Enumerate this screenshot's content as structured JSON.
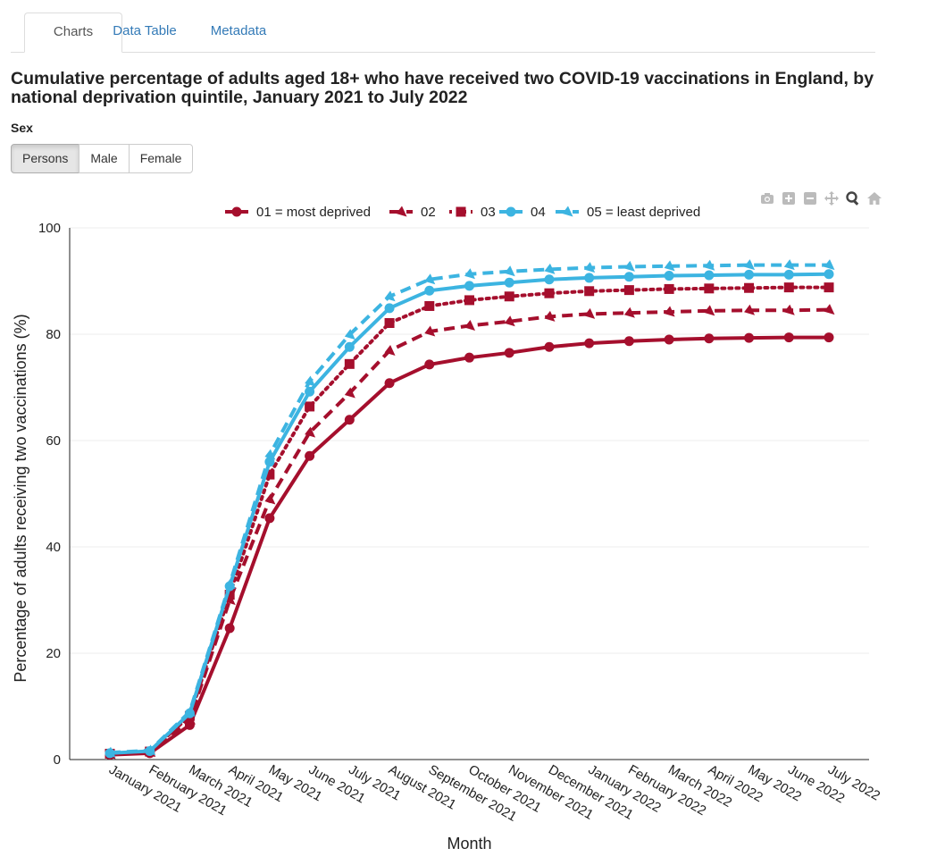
{
  "tabs": [
    {
      "label": "Charts",
      "active": true
    },
    {
      "label": "Data Table",
      "active": false
    },
    {
      "label": "Metadata",
      "active": false
    }
  ],
  "title": "Cumulative percentage of adults aged 18+ who have received two COVID-19 vaccinations in England, by national deprivation quintile, January 2021 to July 2022",
  "filter": {
    "label": "Sex",
    "options": [
      {
        "label": "Persons",
        "active": true
      },
      {
        "label": "Male",
        "active": false
      },
      {
        "label": "Female",
        "active": false
      }
    ]
  },
  "modebar": {
    "icons": [
      "camera-icon",
      "zoom-in-icon",
      "zoom-out-icon",
      "pan-icon",
      "zoom-icon",
      "home-icon"
    ],
    "color": "#bbbbbb"
  },
  "chart_data": {
    "type": "line",
    "xlabel": "Month",
    "ylabel": "Percentage of adults receiving two vaccinations (%)",
    "ylim": [
      0,
      100
    ],
    "yticks": [
      0,
      20,
      40,
      60,
      80,
      100
    ],
    "grid": true,
    "legend_position": "top",
    "categories": [
      "January 2021",
      "February 2021",
      "March 2021",
      "April 2021",
      "May 2021",
      "June 2021",
      "July 2021",
      "August 2021",
      "September 2021",
      "October 2021",
      "November 2021",
      "December 2021",
      "January 2022",
      "February 2022",
      "March 2022",
      "April 2022",
      "May 2022",
      "June 2022",
      "July 2022"
    ],
    "series": [
      {
        "name": "01 = most deprived",
        "color": "#a50f2d",
        "dash": "solid",
        "marker": "circle",
        "values": [
          0.9,
          1.2,
          6.5,
          24.7,
          45.4,
          57.1,
          63.9,
          70.8,
          74.3,
          75.6,
          76.5,
          77.6,
          78.3,
          78.7,
          79.0,
          79.2,
          79.3,
          79.4,
          79.4
        ]
      },
      {
        "name": "02",
        "color": "#a50f2d",
        "dash": "dashed",
        "marker": "triangle",
        "values": [
          1.0,
          1.4,
          7.5,
          30.0,
          48.9,
          61.5,
          68.9,
          76.9,
          80.5,
          81.6,
          82.4,
          83.3,
          83.8,
          84.0,
          84.2,
          84.4,
          84.5,
          84.5,
          84.6
        ]
      },
      {
        "name": "03",
        "color": "#a50f2d",
        "dash": "dotted",
        "marker": "square",
        "values": [
          1.1,
          1.5,
          8.2,
          31.0,
          53.6,
          66.4,
          74.4,
          82.1,
          85.3,
          86.4,
          87.1,
          87.7,
          88.1,
          88.3,
          88.5,
          88.6,
          88.7,
          88.8,
          88.8
        ]
      },
      {
        "name": "04",
        "color": "#3cb4e1",
        "dash": "solid",
        "marker": "circle",
        "values": [
          1.2,
          1.6,
          8.7,
          32.6,
          56.0,
          69.2,
          77.6,
          84.9,
          88.2,
          89.1,
          89.7,
          90.3,
          90.6,
          90.8,
          91.0,
          91.1,
          91.2,
          91.2,
          91.3
        ]
      },
      {
        "name": "05 = least deprived",
        "color": "#3cb4e1",
        "dash": "dashed",
        "marker": "triangle",
        "values": [
          1.3,
          1.7,
          9.0,
          33.0,
          57.3,
          71.1,
          79.9,
          87.1,
          90.3,
          91.3,
          91.8,
          92.2,
          92.5,
          92.7,
          92.8,
          92.9,
          93.0,
          93.0,
          93.0
        ]
      }
    ]
  }
}
